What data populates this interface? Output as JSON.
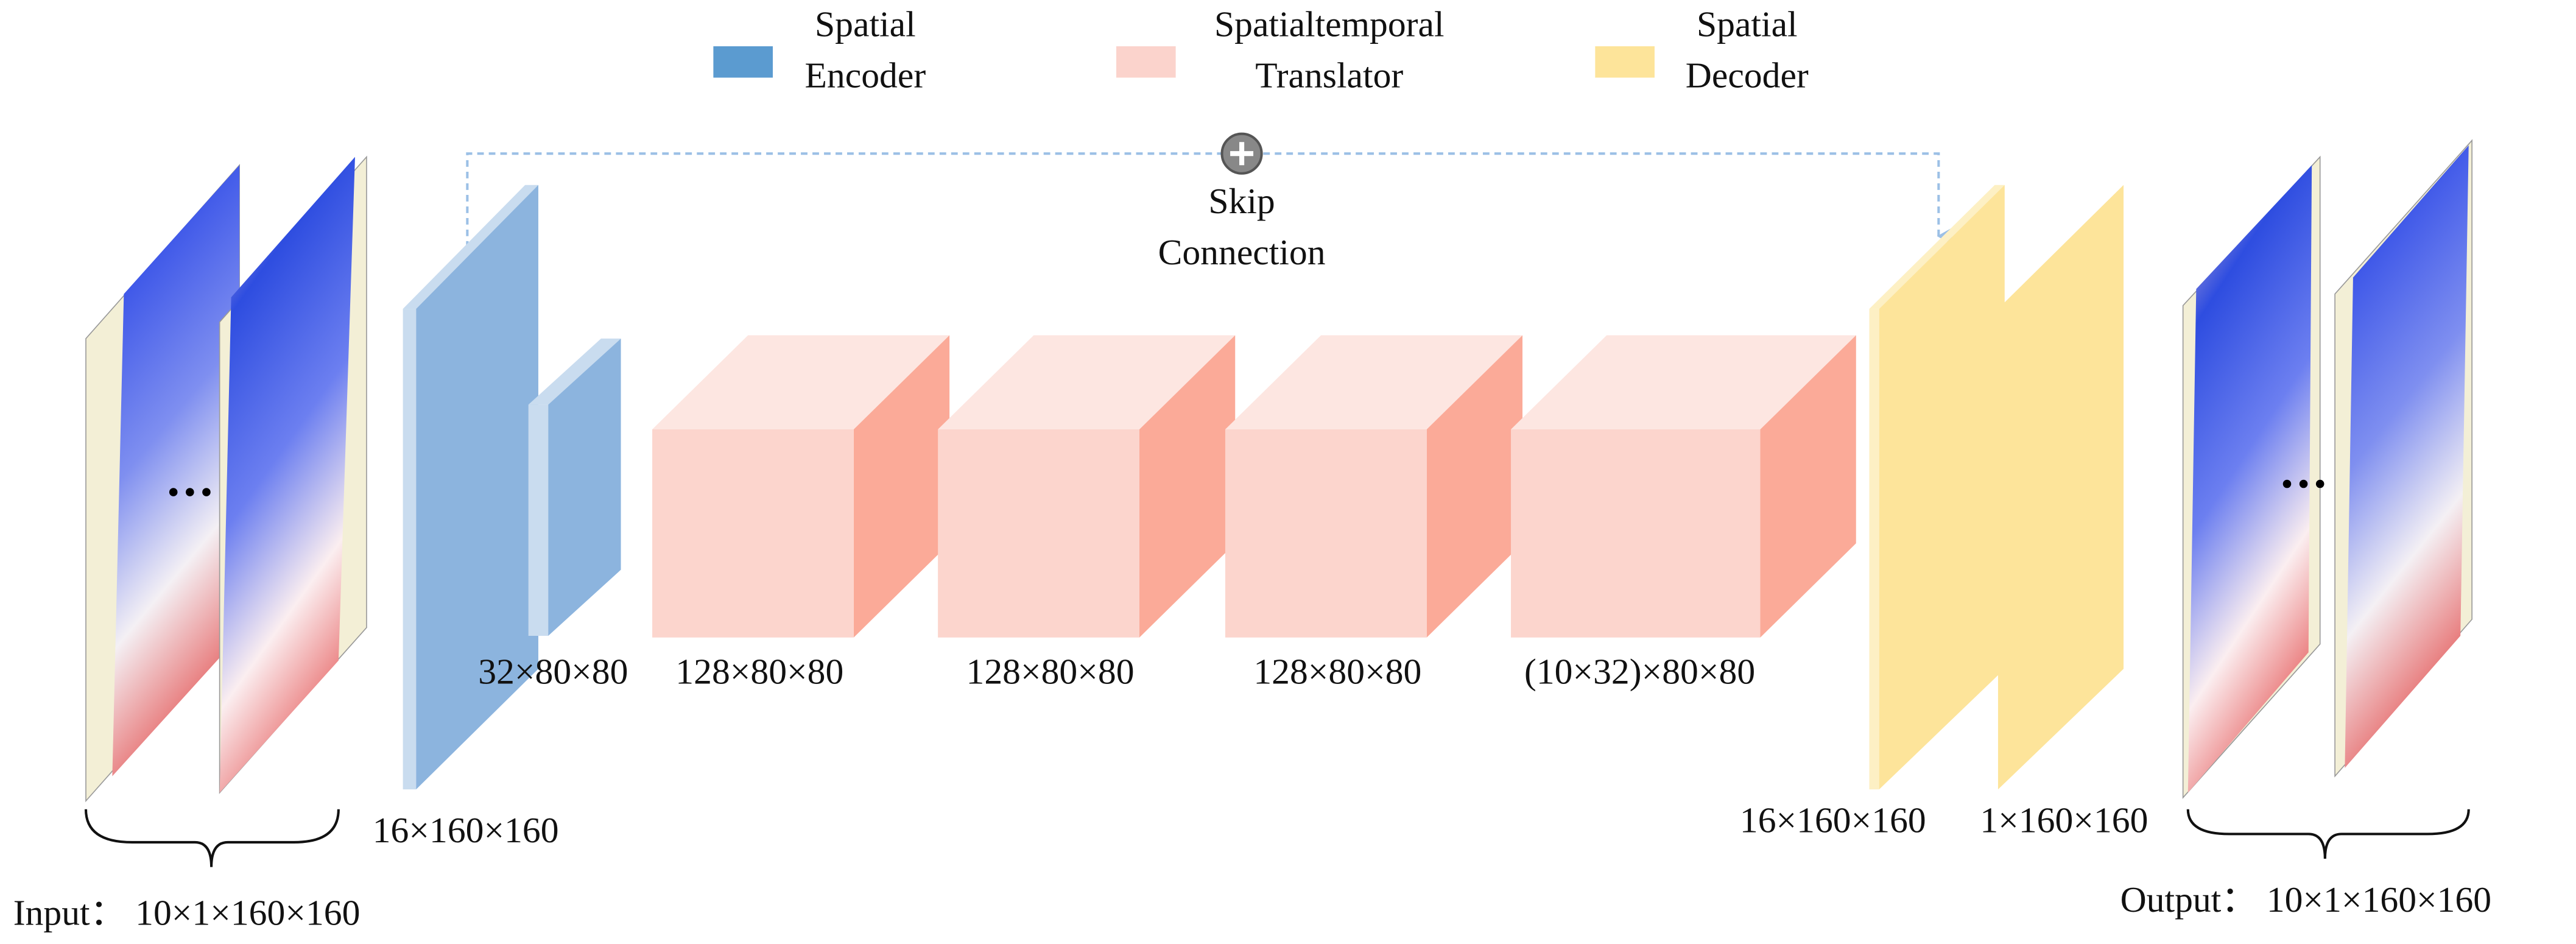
{
  "legend": [
    {
      "lines": [
        "Spatial",
        "Encoder"
      ]
    },
    {
      "lines": [
        "Spatialtemporal",
        "Translator"
      ]
    },
    {
      "lines": [
        "Spatial",
        "Decoder"
      ]
    }
  ],
  "skip": {
    "lines": [
      "Skip",
      "Connection"
    ]
  },
  "dims": {
    "encoder_1": "16×160×160",
    "encoder_2": "32×80×80",
    "translator": [
      "128×80×80",
      "128×80×80",
      "128×80×80",
      "(10×32)×80×80"
    ],
    "decoder_1": "16×160×160",
    "decoder_2": "1×160×160"
  },
  "input": "Input： 10×1×160×160",
  "output": "Output： 10×1×160×160"
}
